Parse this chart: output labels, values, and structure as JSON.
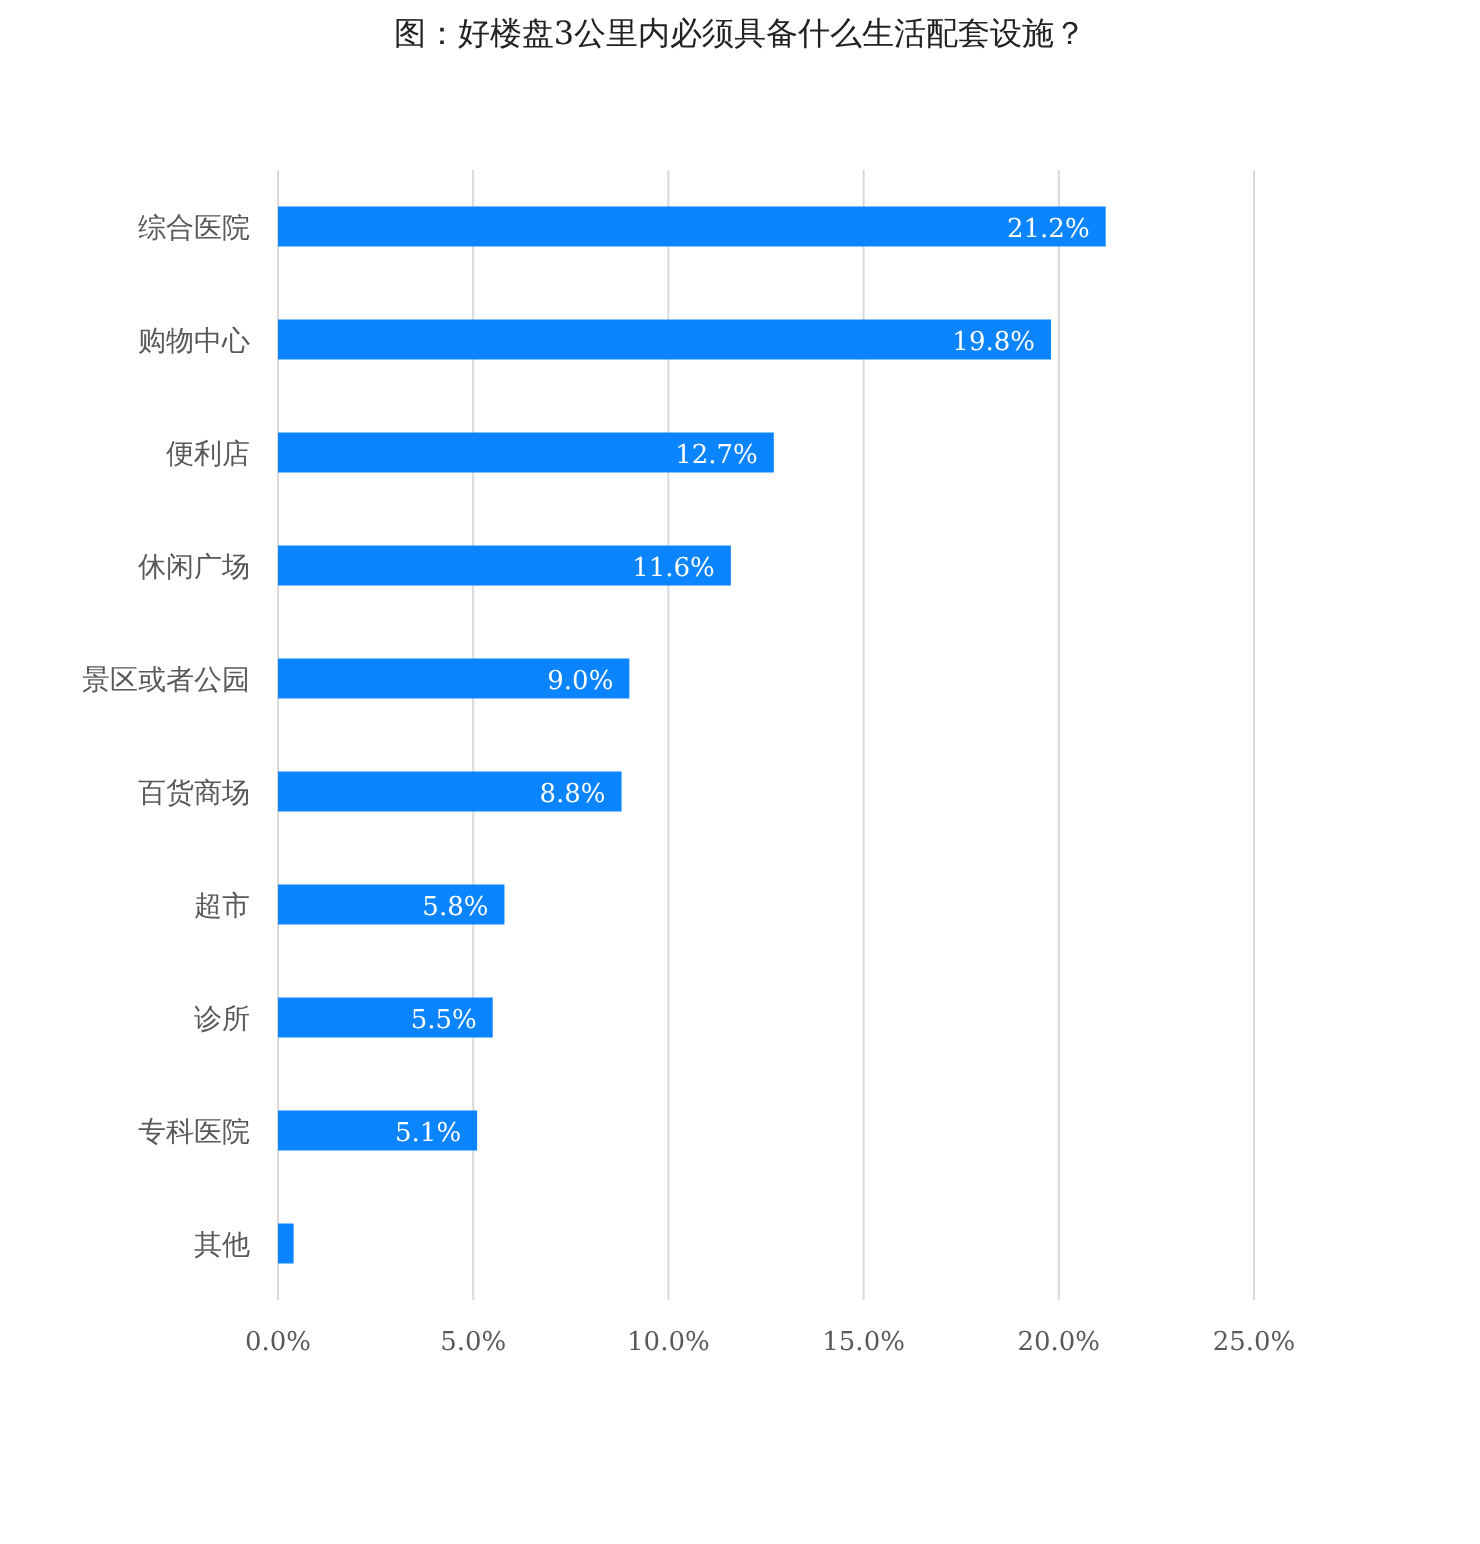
{
  "chart_data": {
    "type": "bar",
    "orientation": "horizontal",
    "title": "图：好楼盘3公里内必须具备什么生活配套设施？",
    "categories": [
      "综合医院",
      "购物中心",
      "便利店",
      "休闲广场",
      "景区或者公园",
      "百货商场",
      "超市",
      "诊所",
      "专科医院",
      "其他"
    ],
    "values": [
      21.2,
      19.8,
      12.7,
      11.6,
      9.0,
      8.8,
      5.8,
      5.5,
      5.1,
      0.4
    ],
    "value_labels": [
      "21.2%",
      "19.8%",
      "12.7%",
      "11.6%",
      "9.0%",
      "8.8%",
      "5.8%",
      "5.5%",
      "5.1%",
      null
    ],
    "color": "#0a84ff",
    "xlim": [
      0,
      25
    ],
    "xticks": [
      {
        "value": 0,
        "label": "0.0%"
      },
      {
        "value": 5,
        "label": "5.0%"
      },
      {
        "value": 10,
        "label": "10.0%"
      },
      {
        "value": 15,
        "label": "15.0%"
      },
      {
        "value": 20,
        "label": "20.0%"
      },
      {
        "value": 25,
        "label": "25.0%"
      }
    ],
    "grid": "x"
  }
}
